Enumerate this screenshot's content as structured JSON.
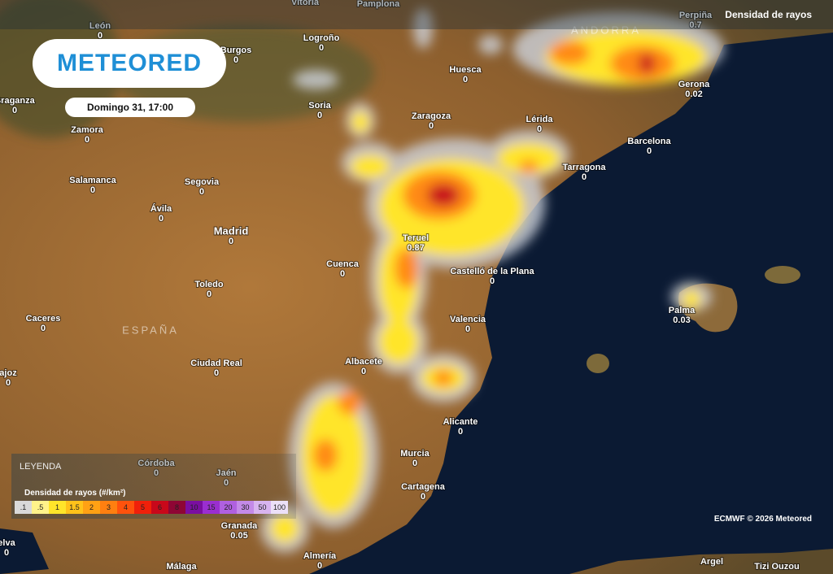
{
  "header": {
    "logo": "METEORED",
    "date": "Domingo 31, 17:00",
    "layer": "Densidad de rayos"
  },
  "regions": [
    "ANDORRA",
    "ESPAÑA"
  ],
  "cities": [
    {
      "name": "León",
      "value": 0
    },
    {
      "name": "Logroño",
      "value": 0
    },
    {
      "name": "Burgos",
      "value": 0
    },
    {
      "name": "Soria",
      "value": 0
    },
    {
      "name": "Huesca",
      "value": 0
    },
    {
      "name": "Zaragoza",
      "value": 0
    },
    {
      "name": "Lérida",
      "value": 0
    },
    {
      "name": "Barcelona",
      "value": 0
    },
    {
      "name": "Tarragona",
      "value": 0
    },
    {
      "name": "Gerona",
      "value": 0.02
    },
    {
      "name": "Perpiña",
      "value": 0.7
    },
    {
      "name": "Braganza",
      "value": 0
    },
    {
      "name": "Zamora",
      "value": 0
    },
    {
      "name": "Salamanca",
      "value": 0
    },
    {
      "name": "Segovia",
      "value": 0
    },
    {
      "name": "Ávila",
      "value": 0
    },
    {
      "name": "Madrid",
      "value": 0
    },
    {
      "name": "Teruel",
      "value": 0.87
    },
    {
      "name": "Cuenca",
      "value": 0
    },
    {
      "name": "Castelló de la Plana",
      "value": 0
    },
    {
      "name": "Toledo",
      "value": 0
    },
    {
      "name": "Valencia",
      "value": 0
    },
    {
      "name": "Palma",
      "value": 0.03
    },
    {
      "name": "Caceres",
      "value": 0
    },
    {
      "name": "Ciudad Real",
      "value": 0
    },
    {
      "name": "Albacete",
      "value": 0
    },
    {
      "name": "ajoz",
      "value": 0
    },
    {
      "name": "Alicante",
      "value": 0
    },
    {
      "name": "Murcia",
      "value": 0
    },
    {
      "name": "Córdoba",
      "value": 0
    },
    {
      "name": "Jaén",
      "value": 0
    },
    {
      "name": "Cartagena",
      "value": 0
    },
    {
      "name": "Granada",
      "value": 0.05
    },
    {
      "name": "elva",
      "value": 0
    },
    {
      "name": "Almería",
      "value": 0
    },
    {
      "name": "Vitoria"
    },
    {
      "name": "Pamplona"
    },
    {
      "name": "Málaga"
    },
    {
      "name": "Argel"
    },
    {
      "name": "Tizi Ouzou"
    }
  ],
  "legend": {
    "heading": "LEYENDA",
    "title": "Densidad de rayos (#/km²)",
    "items": [
      {
        "label": ".1",
        "color": "#d9d9d9"
      },
      {
        "label": ".5",
        "color": "#fff38a"
      },
      {
        "label": "1",
        "color": "#ffe52a"
      },
      {
        "label": "1.5",
        "color": "#ffc21a"
      },
      {
        "label": "2",
        "color": "#ffa114"
      },
      {
        "label": "3",
        "color": "#ff7f10"
      },
      {
        "label": "4",
        "color": "#ff520c"
      },
      {
        "label": "5",
        "color": "#f0200a"
      },
      {
        "label": "6",
        "color": "#c8081a"
      },
      {
        "label": "8",
        "color": "#8e0634"
      },
      {
        "label": "10",
        "color": "#7a0ea0"
      },
      {
        "label": "15",
        "color": "#9a2ed0"
      },
      {
        "label": "20",
        "color": "#b060e0"
      },
      {
        "label": "30",
        "color": "#c48ae8"
      },
      {
        "label": "50",
        "color": "#d8b4f0"
      },
      {
        "label": "100",
        "color": "#ece0f8"
      }
    ]
  },
  "credit": "ECMWF © 2026 Meteored"
}
